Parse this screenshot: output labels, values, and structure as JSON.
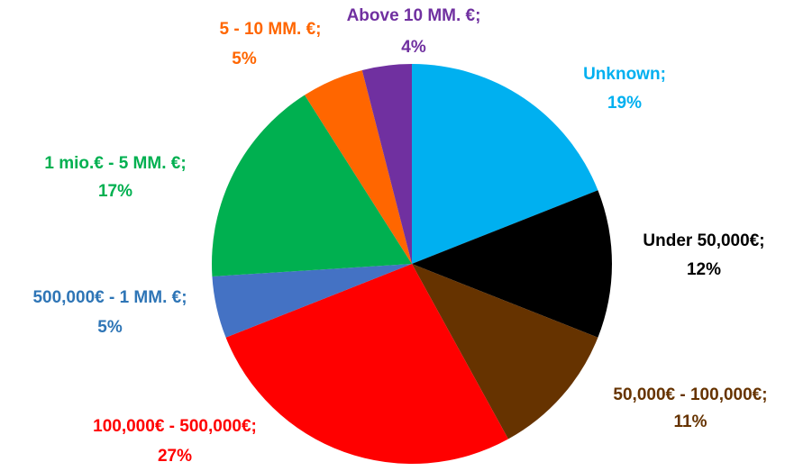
{
  "chart_data": {
    "type": "pie",
    "categories": [
      "Unknown;",
      "Under 50,000€;",
      "50,000€ - 100,000€;",
      "100,000€ - 500,000€;",
      "500,000€ - 1 MM. €;",
      "1 mio.€ - 5 MM. €;",
      "5 - 10 MM. €;",
      "Above 10 MM. €;"
    ],
    "values": [
      19,
      12,
      11,
      27,
      5,
      17,
      5,
      4
    ],
    "value_labels": [
      "19%",
      "12%",
      "11%",
      "27%",
      "5%",
      "17%",
      "5%",
      "4%"
    ],
    "colors": [
      "#00b0f0",
      "#000000",
      "#663300",
      "#ff0000",
      "#4472c4",
      "#00b050",
      "#ff6600",
      "#7030a0"
    ]
  }
}
